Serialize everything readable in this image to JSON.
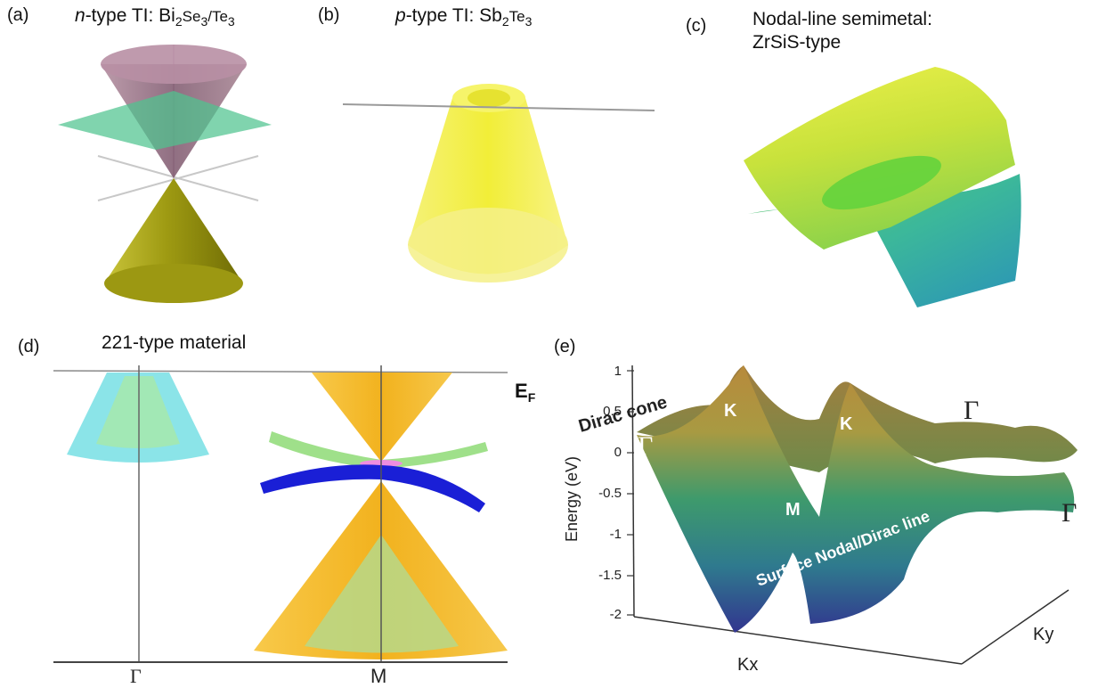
{
  "panels": {
    "a": {
      "label": "(a)",
      "title_italic": "n",
      "title_rest": "-type TI: Bi",
      "sub1": "2",
      "mid1": "Se",
      "sub2": "3",
      "mid2": "/Te",
      "sub3": "3"
    },
    "b": {
      "label": "(b)",
      "title_italic": "p",
      "title_rest": "-type TI: Sb",
      "sub1": "2",
      "mid1": "Te",
      "sub2": "3"
    },
    "c": {
      "label": "(c)",
      "title_line1": "Nodal-line semimetal:",
      "title_line2": "ZrSiS-type"
    },
    "d": {
      "label": "(d)",
      "title": "221-type material",
      "ef_main": "E",
      "ef_sub": "F",
      "gamma": "Γ",
      "m": "M"
    },
    "e": {
      "label": "(e)",
      "ylabel": "Energy (eV)",
      "yticks": [
        "1",
        "0.5",
        "0",
        "-0.5",
        "-1",
        "-1.5",
        "-2"
      ],
      "kx": "Kx",
      "ky": "Ky",
      "dirac_cone": "Dirac cone",
      "surface_line": "Surface Nodal/Dirac line",
      "k1": "K",
      "k2": "K",
      "m": "M",
      "gamma1": "Γ",
      "gamma2": "Γ",
      "gamma3": "Γ"
    }
  },
  "colors": {
    "upper_cone_a": "#9a6f84",
    "green_plane": "#4fc48f",
    "lower_cone_a": "#a8a414",
    "yellow_b": "#f2ee2a",
    "orange_cone": "#f5b92c",
    "cyan_cone": "#7ee1e6",
    "blue_band": "#1a1fd6",
    "green_band": "#9fe08a"
  }
}
